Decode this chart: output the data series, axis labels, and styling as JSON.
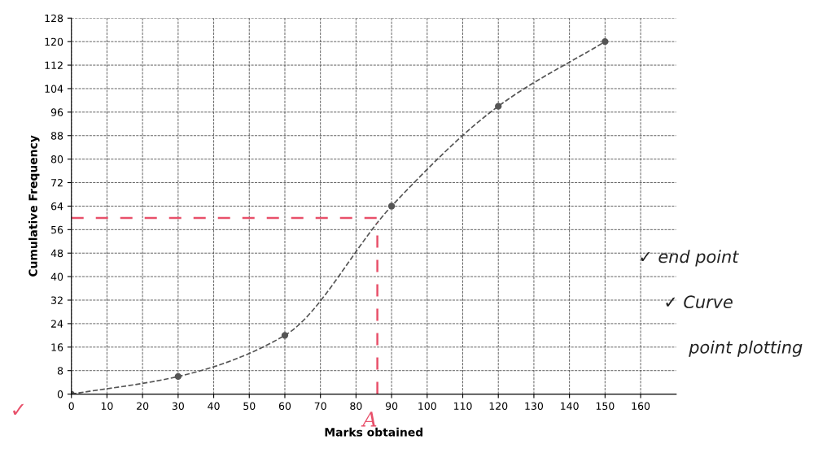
{
  "chart_data": {
    "type": "line",
    "xlabel": "Marks obtained",
    "ylabel": "Cumulative Frequency",
    "x": [
      0,
      30,
      60,
      90,
      120,
      150
    ],
    "series": [
      {
        "color": "#555555",
        "values": [
          0,
          6,
          20,
          64,
          98,
          120
        ]
      }
    ],
    "xlim": [
      0,
      170
    ],
    "ylim": [
      0,
      128
    ],
    "xticks": [
      0,
      10,
      20,
      30,
      40,
      50,
      60,
      70,
      80,
      90,
      100,
      110,
      120,
      130,
      140,
      150,
      160
    ],
    "yticks": [
      0,
      8,
      16,
      24,
      32,
      40,
      48,
      56,
      64,
      72,
      80,
      88,
      96,
      104,
      112,
      120,
      128
    ],
    "ref_lines": [
      {
        "axis": "y",
        "value": 60,
        "color": "#e8506a",
        "line_style": "dashed"
      },
      {
        "axis": "x",
        "value": 86,
        "label": "A",
        "color": "#e8506a",
        "line_style": "dashed"
      }
    ],
    "annotations": [
      "✓",
      "✓ end point",
      "✓ Curve",
      "point plotting"
    ],
    "grid": true,
    "marker": "circle",
    "line_style": "dashed"
  }
}
